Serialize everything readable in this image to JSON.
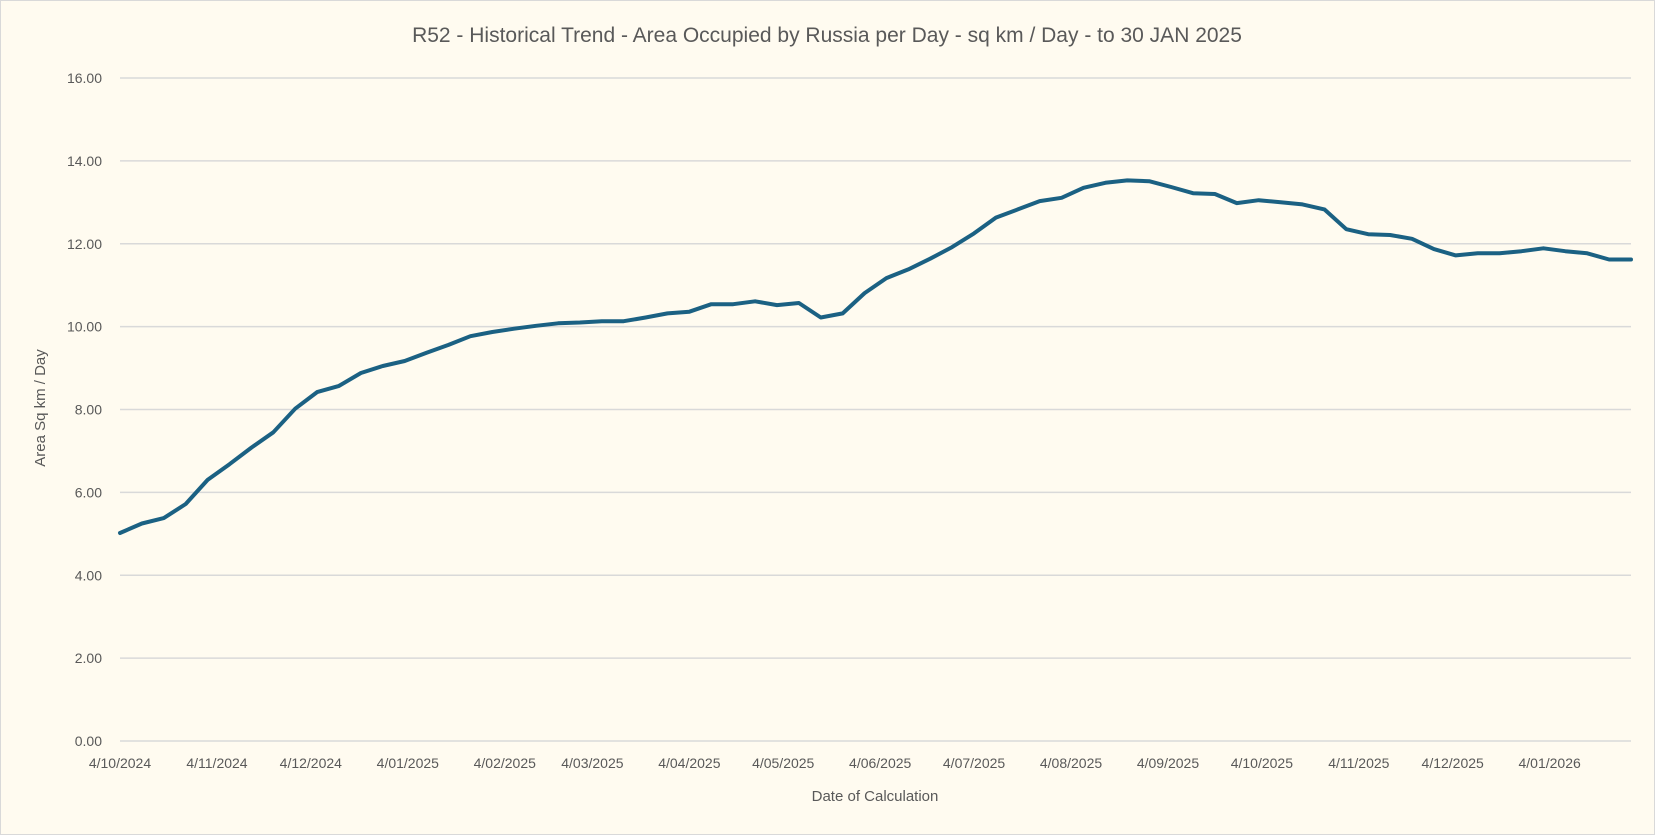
{
  "chart_data": {
    "type": "line",
    "title": "R52 - Historical Trend - Area Occupied by Russia per Day - sq km / Day - to 30 JAN 2025",
    "xlabel": "Date of Calculation",
    "ylabel": "Area Sq km / Day",
    "ylim": [
      0,
      16
    ],
    "yticks": [
      "0.00",
      "2.00",
      "4.00",
      "6.00",
      "8.00",
      "10.00",
      "12.00",
      "14.00",
      "16.00"
    ],
    "xticks": [
      {
        "date": "2024-10-04",
        "label": "4/10/2024"
      },
      {
        "date": "2024-11-04",
        "label": "4/11/2024"
      },
      {
        "date": "2024-12-04",
        "label": "4/12/2024"
      },
      {
        "date": "2025-01-04",
        "label": "4/01/2025"
      },
      {
        "date": "2025-02-04",
        "label": "4/02/2025"
      },
      {
        "date": "2025-03-04",
        "label": "4/03/2025"
      },
      {
        "date": "2025-04-04",
        "label": "4/04/2025"
      },
      {
        "date": "2025-05-04",
        "label": "4/05/2025"
      },
      {
        "date": "2025-06-04",
        "label": "4/06/2025"
      },
      {
        "date": "2025-07-04",
        "label": "4/07/2025"
      },
      {
        "date": "2025-08-04",
        "label": "4/08/2025"
      },
      {
        "date": "2025-09-04",
        "label": "4/09/2025"
      },
      {
        "date": "2025-10-04",
        "label": "4/10/2025"
      },
      {
        "date": "2025-11-04",
        "label": "4/11/2025"
      },
      {
        "date": "2025-12-04",
        "label": "4/12/2025"
      },
      {
        "date": "2026-01-04",
        "label": "4/01/2026"
      }
    ],
    "xlim": [
      "2024-10-04",
      "2026-01-30"
    ],
    "grid": true,
    "legend": "none",
    "line_color": "#1b6183",
    "grid_color": "#d9d9d9",
    "background": "#fffbf0",
    "x": [
      "2024-10-04",
      "2024-10-11",
      "2024-10-18",
      "2024-10-25",
      "2024-11-01",
      "2024-11-08",
      "2024-11-15",
      "2024-11-22",
      "2024-11-29",
      "2024-12-06",
      "2024-12-13",
      "2024-12-20",
      "2024-12-27",
      "2025-01-03",
      "2025-01-10",
      "2025-01-17",
      "2025-01-24",
      "2025-01-31",
      "2025-02-07",
      "2025-02-14",
      "2025-02-21",
      "2025-02-28",
      "2025-03-07",
      "2025-03-14",
      "2025-03-21",
      "2025-03-28",
      "2025-04-04",
      "2025-04-11",
      "2025-04-18",
      "2025-04-25",
      "2025-05-02",
      "2025-05-09",
      "2025-05-16",
      "2025-05-23",
      "2025-05-30",
      "2025-06-06",
      "2025-06-13",
      "2025-06-20",
      "2025-06-27",
      "2025-07-04",
      "2025-07-11",
      "2025-07-18",
      "2025-07-25",
      "2025-08-01",
      "2025-08-08",
      "2025-08-15",
      "2025-08-22",
      "2025-08-29",
      "2025-09-05",
      "2025-09-12",
      "2025-09-19",
      "2025-09-26",
      "2025-10-03",
      "2025-10-10",
      "2025-10-17",
      "2025-10-24",
      "2025-10-31",
      "2025-11-07",
      "2025-11-14",
      "2025-11-21",
      "2025-11-28",
      "2025-12-05",
      "2025-12-12",
      "2025-12-19",
      "2025-12-26",
      "2026-01-02",
      "2026-01-09",
      "2026-01-16",
      "2026-01-23",
      "2026-01-30"
    ],
    "values": [
      5.02,
      5.25,
      5.38,
      5.72,
      6.3,
      6.68,
      7.08,
      7.45,
      8.02,
      8.42,
      8.57,
      8.88,
      9.05,
      9.17,
      9.37,
      9.56,
      9.77,
      9.87,
      9.95,
      10.02,
      10.08,
      10.1,
      10.13,
      10.13,
      10.22,
      10.32,
      10.36,
      10.54,
      10.54,
      10.61,
      10.52,
      10.57,
      10.22,
      10.32,
      10.81,
      11.17,
      11.38,
      11.64,
      11.92,
      12.25,
      12.63,
      12.83,
      13.03,
      13.11,
      13.35,
      13.47,
      13.53,
      13.51,
      13.37,
      13.22,
      13.2,
      12.98,
      13.05,
      13.0,
      12.95,
      12.83,
      12.35,
      12.23,
      12.21,
      12.12,
      11.87,
      11.72,
      11.77,
      11.77,
      11.82,
      11.89,
      11.82,
      11.77,
      11.62,
      11.62
    ]
  }
}
